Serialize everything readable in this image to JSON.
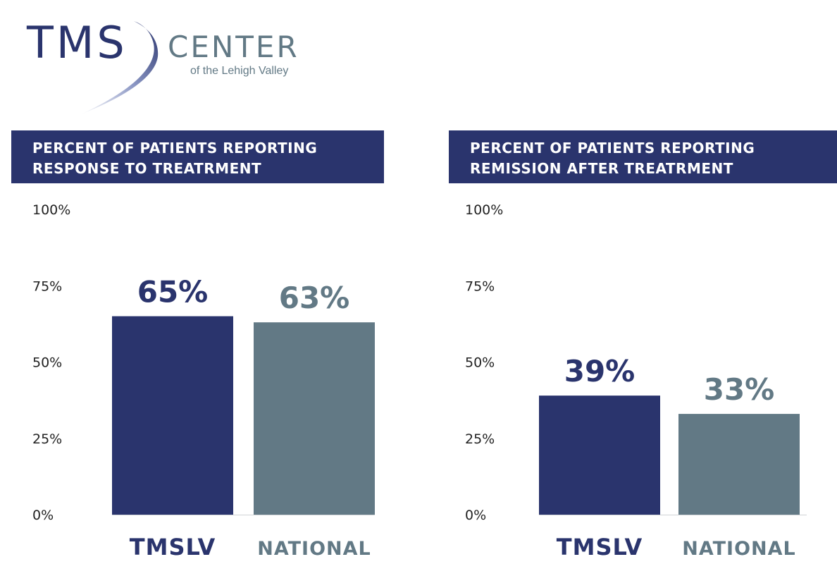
{
  "logo": {
    "primary": "TMS",
    "secondary": "CENTER",
    "tagline": "of the Lehigh Valley"
  },
  "colors": {
    "navy": "#2a346d",
    "slate": "#627985",
    "axis": "#cfd3d6",
    "text": "#222222"
  },
  "chart_data": [
    {
      "type": "bar",
      "title_lines": [
        "PERCENT OF PATIENTS REPORTING",
        "RESPONSE TO TREATRMENT"
      ],
      "categories": [
        "TMSLV",
        "NATIONAL"
      ],
      "values": [
        65,
        63
      ],
      "value_labels": [
        "65%",
        "63%"
      ],
      "yticks": [
        {
          "value": 0,
          "label": "0%"
        },
        {
          "value": 25,
          "label": "25%"
        },
        {
          "value": 50,
          "label": "50%"
        },
        {
          "value": 75,
          "label": "75%"
        },
        {
          "value": 100,
          "label": "100%"
        }
      ],
      "ylim": [
        0,
        100
      ],
      "bar_colors": [
        "#2a346d",
        "#627985"
      ]
    },
    {
      "type": "bar",
      "title_lines": [
        "PERCENT OF PATIENTS REPORTING",
        "REMISSION AFTER TREATRMENT"
      ],
      "categories": [
        "TMSLV",
        "NATIONAL"
      ],
      "values": [
        39,
        33
      ],
      "value_labels": [
        "39%",
        "33%"
      ],
      "yticks": [
        {
          "value": 0,
          "label": "0%"
        },
        {
          "value": 25,
          "label": "25%"
        },
        {
          "value": 50,
          "label": "50%"
        },
        {
          "value": 75,
          "label": "75%"
        },
        {
          "value": 100,
          "label": "100%"
        }
      ],
      "ylim": [
        0,
        100
      ],
      "bar_colors": [
        "#2a346d",
        "#627985"
      ]
    }
  ]
}
